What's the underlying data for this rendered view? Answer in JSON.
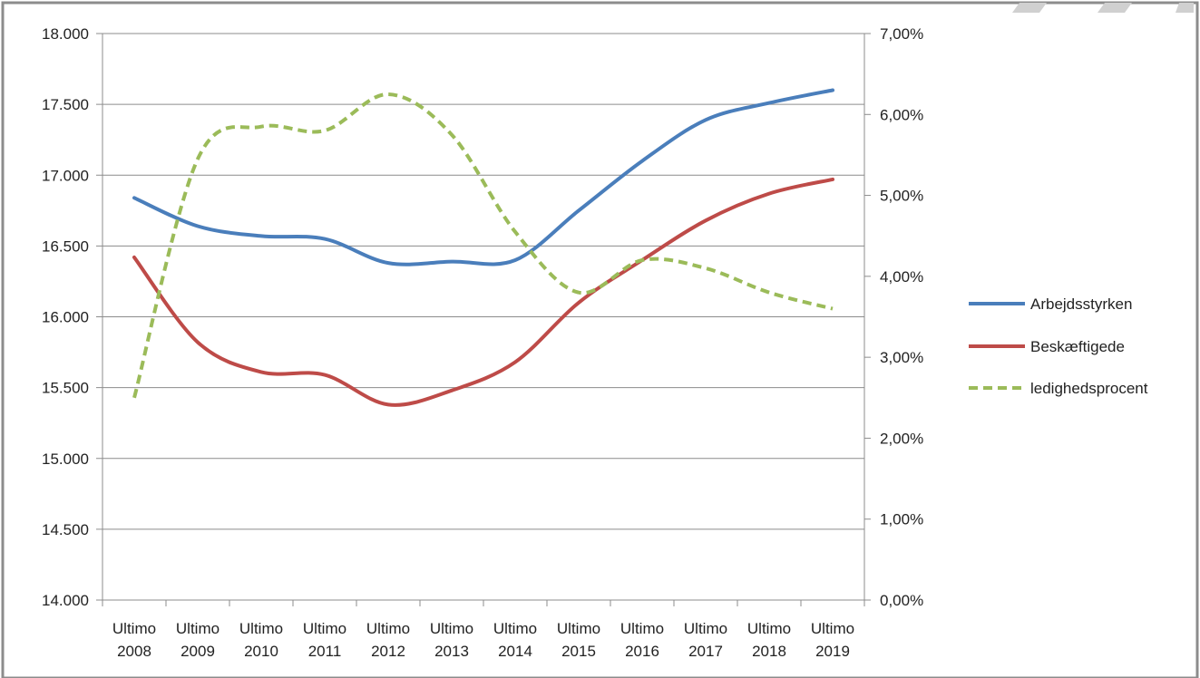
{
  "chart_data": {
    "type": "line",
    "categories": [
      [
        "Ultimo",
        "2008"
      ],
      [
        "Ultimo",
        "2009"
      ],
      [
        "Ultimo",
        "2010"
      ],
      [
        "Ultimo",
        "2011"
      ],
      [
        "Ultimo",
        "2012"
      ],
      [
        "Ultimo",
        "2013"
      ],
      [
        "Ultimo",
        "2014"
      ],
      [
        "Ultimo",
        "2015"
      ],
      [
        "Ultimo",
        "2016"
      ],
      [
        "Ultimo",
        "2017"
      ],
      [
        "Ultimo",
        "2018"
      ],
      [
        "Ultimo",
        "2019"
      ]
    ],
    "y_left": {
      "ylim": [
        14000,
        18000
      ],
      "ticks": [
        14000,
        14500,
        15000,
        15500,
        16000,
        16500,
        17000,
        17500,
        18000
      ],
      "tick_labels": [
        "14.000",
        "14.500",
        "15.000",
        "15.500",
        "16.000",
        "16.500",
        "17.000",
        "17.500",
        "18.000"
      ]
    },
    "y_right": {
      "ylim": [
        0,
        0.07
      ],
      "ticks": [
        0,
        0.01,
        0.02,
        0.03,
        0.04,
        0.05,
        0.06,
        0.07
      ],
      "tick_labels": [
        "0,00%",
        "1,00%",
        "2,00%",
        "3,00%",
        "4,00%",
        "5,00%",
        "6,00%",
        "7,00%"
      ]
    },
    "grid": true,
    "legend_position": "right",
    "series": [
      {
        "name": "Arbejdsstyrken",
        "axis": "left",
        "color": "#4a7ebb",
        "style": "solid",
        "values": [
          16840,
          16640,
          16570,
          16550,
          16380,
          16390,
          16400,
          16750,
          17100,
          17390,
          17510,
          17600
        ]
      },
      {
        "name": "Beskæftigede",
        "axis": "left",
        "color": "#be4b48",
        "style": "solid",
        "values": [
          16420,
          15820,
          15610,
          15590,
          15380,
          15480,
          15680,
          16100,
          16400,
          16680,
          16870,
          16970
        ]
      },
      {
        "name": "ledighedsprocent",
        "axis": "right",
        "color": "#9bbb59",
        "style": "dashed",
        "values": [
          0.025,
          0.0545,
          0.0585,
          0.058,
          0.0625,
          0.0575,
          0.0455,
          0.038,
          0.042,
          0.041,
          0.038,
          0.036
        ]
      }
    ]
  }
}
